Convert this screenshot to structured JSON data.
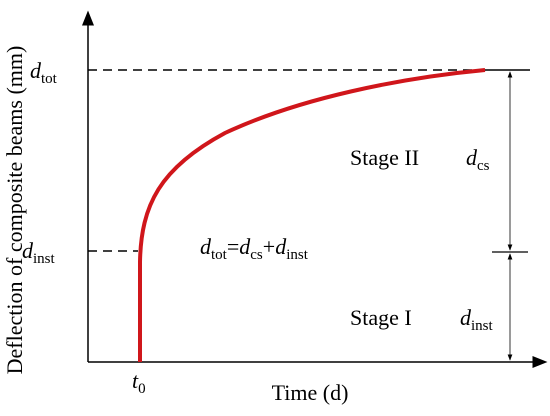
{
  "axes": {
    "x_label": "Time (d)",
    "y_label": "Deflection of composite beams (mm)"
  },
  "markers": {
    "x_origin": {
      "symbol": "t",
      "sub": "0"
    },
    "y_top": {
      "symbol": "d",
      "sub": "tot"
    },
    "y_mid": {
      "symbol": "d",
      "sub": "inst"
    }
  },
  "regions": [
    {
      "label": "Stage II",
      "symbol": "d",
      "sub": "cs"
    },
    {
      "label": "Stage I",
      "symbol": "d",
      "sub": "inst"
    }
  ],
  "equation": [
    {
      "symbol": "d",
      "sub": "tot"
    },
    {
      "op": "="
    },
    {
      "symbol": "d",
      "sub": "cs"
    },
    {
      "op": "+"
    },
    {
      "symbol": "d",
      "sub": "inst"
    }
  ]
}
